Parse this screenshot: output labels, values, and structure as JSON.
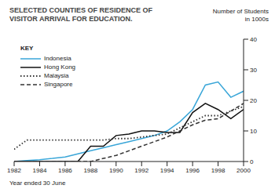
{
  "chart_data": {
    "type": "line",
    "title": "SELECTED COUNTIES OF RESIDENCE OF VISITOR ARRIVAL FOR EDUCATION.",
    "x_label": "Year ended 30 June",
    "y_label": "Number of Students in 1000s",
    "legend_title": "KEY",
    "legend": "upper left",
    "grid": false,
    "x": [
      1982,
      1983,
      1984,
      1985,
      1986,
      1987,
      1988,
      1989,
      1990,
      1991,
      1992,
      1993,
      1994,
      1995,
      1996,
      1997,
      1998,
      1999,
      2000
    ],
    "xlim": [
      1982,
      2000
    ],
    "xticks": [
      1982,
      1984,
      1986,
      1988,
      1990,
      1992,
      1994,
      1996,
      1998,
      2000
    ],
    "ylim": [
      0,
      40
    ],
    "yticks": [
      0,
      10,
      20,
      30,
      40
    ],
    "series": [
      {
        "name": "Indonesia",
        "color": "#3aa6d8",
        "line_style": "solid",
        "values": [
          0,
          0.3,
          0.6,
          1,
          1.5,
          2.5,
          3.5,
          4.5,
          5.5,
          6.5,
          7.5,
          8.5,
          10,
          13,
          17,
          25,
          26,
          21,
          23
        ]
      },
      {
        "name": "Hong Kong",
        "color": "#111111",
        "line_style": "solid",
        "values": [
          0,
          0,
          0,
          0,
          0,
          0,
          5,
          5,
          8.5,
          9,
          10,
          10,
          9.5,
          9.5,
          16,
          19,
          17,
          14,
          17
        ]
      },
      {
        "name": "Malaysia",
        "color": "#333333",
        "line_style": "dotted",
        "values": [
          4,
          7,
          7,
          7,
          7,
          7,
          7,
          7,
          7.5,
          7.5,
          8,
          8.5,
          9,
          11,
          13,
          15,
          15,
          16.5,
          18
        ]
      },
      {
        "name": "Singapore",
        "color": "#333333",
        "line_style": "dashed",
        "values": [
          0,
          0,
          0,
          0,
          0,
          0,
          0,
          1,
          2,
          3.5,
          5,
          6.5,
          8,
          10,
          12,
          13.5,
          14,
          16.5,
          19
        ]
      }
    ]
  }
}
